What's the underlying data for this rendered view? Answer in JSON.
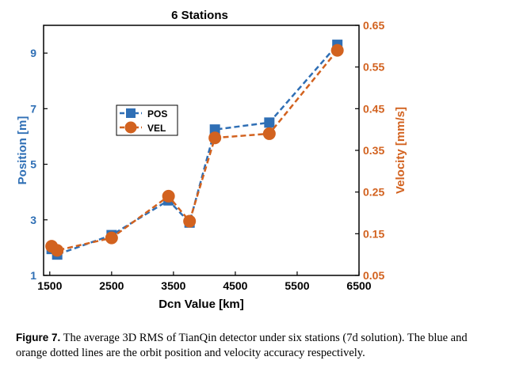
{
  "chart_data": {
    "type": "line",
    "title": "6 Stations",
    "xlabel": "Dcn Value [km]",
    "ylabel_left": "Position [m]",
    "ylabel_right": "Velocity [mm/s]",
    "xlim": [
      1400,
      6500
    ],
    "ylim_left": [
      1,
      10
    ],
    "ylim_right": [
      0.05,
      0.65
    ],
    "x_ticks": [
      1500,
      2500,
      3500,
      4500,
      5500,
      6500
    ],
    "x_tick_labels": [
      "1500",
      "2500",
      "3500",
      "4500",
      "5500",
      "6500"
    ],
    "y_left_ticks": [
      1,
      3,
      5,
      7,
      9
    ],
    "y_left_tick_labels": [
      "1",
      "3",
      "5",
      "7",
      "9"
    ],
    "y_right_ticks": [
      0.05,
      0.15,
      0.25,
      0.35,
      0.45,
      0.55,
      0.65
    ],
    "y_right_tick_labels": [
      "0.05",
      "0.15",
      "0.25",
      "0.35",
      "0.45",
      "0.55",
      "0.65"
    ],
    "series": [
      {
        "name": "POS",
        "axis": "left",
        "marker": "square",
        "color": "#2f6fb5",
        "x": [
          1530,
          1620,
          2500,
          3420,
          3760,
          4170,
          5050,
          6150
        ],
        "y": [
          1.95,
          1.75,
          2.45,
          3.7,
          2.9,
          6.25,
          6.5,
          9.3
        ]
      },
      {
        "name": "VEL",
        "axis": "right",
        "marker": "circle",
        "color": "#d2621f",
        "x": [
          1530,
          1620,
          2500,
          3420,
          3760,
          4170,
          5050,
          6150
        ],
        "y": [
          0.12,
          0.11,
          0.14,
          0.24,
          0.18,
          0.38,
          0.39,
          0.59
        ]
      }
    ],
    "legend": {
      "position": "upper-left",
      "entries": [
        "POS",
        "VEL"
      ]
    }
  },
  "caption": {
    "label": "Figure 7.",
    "text": " The average 3D RMS of TianQin detector under six stations (7d solution). The blue and orange dotted lines are the orbit position and velocity accuracy respectively."
  }
}
